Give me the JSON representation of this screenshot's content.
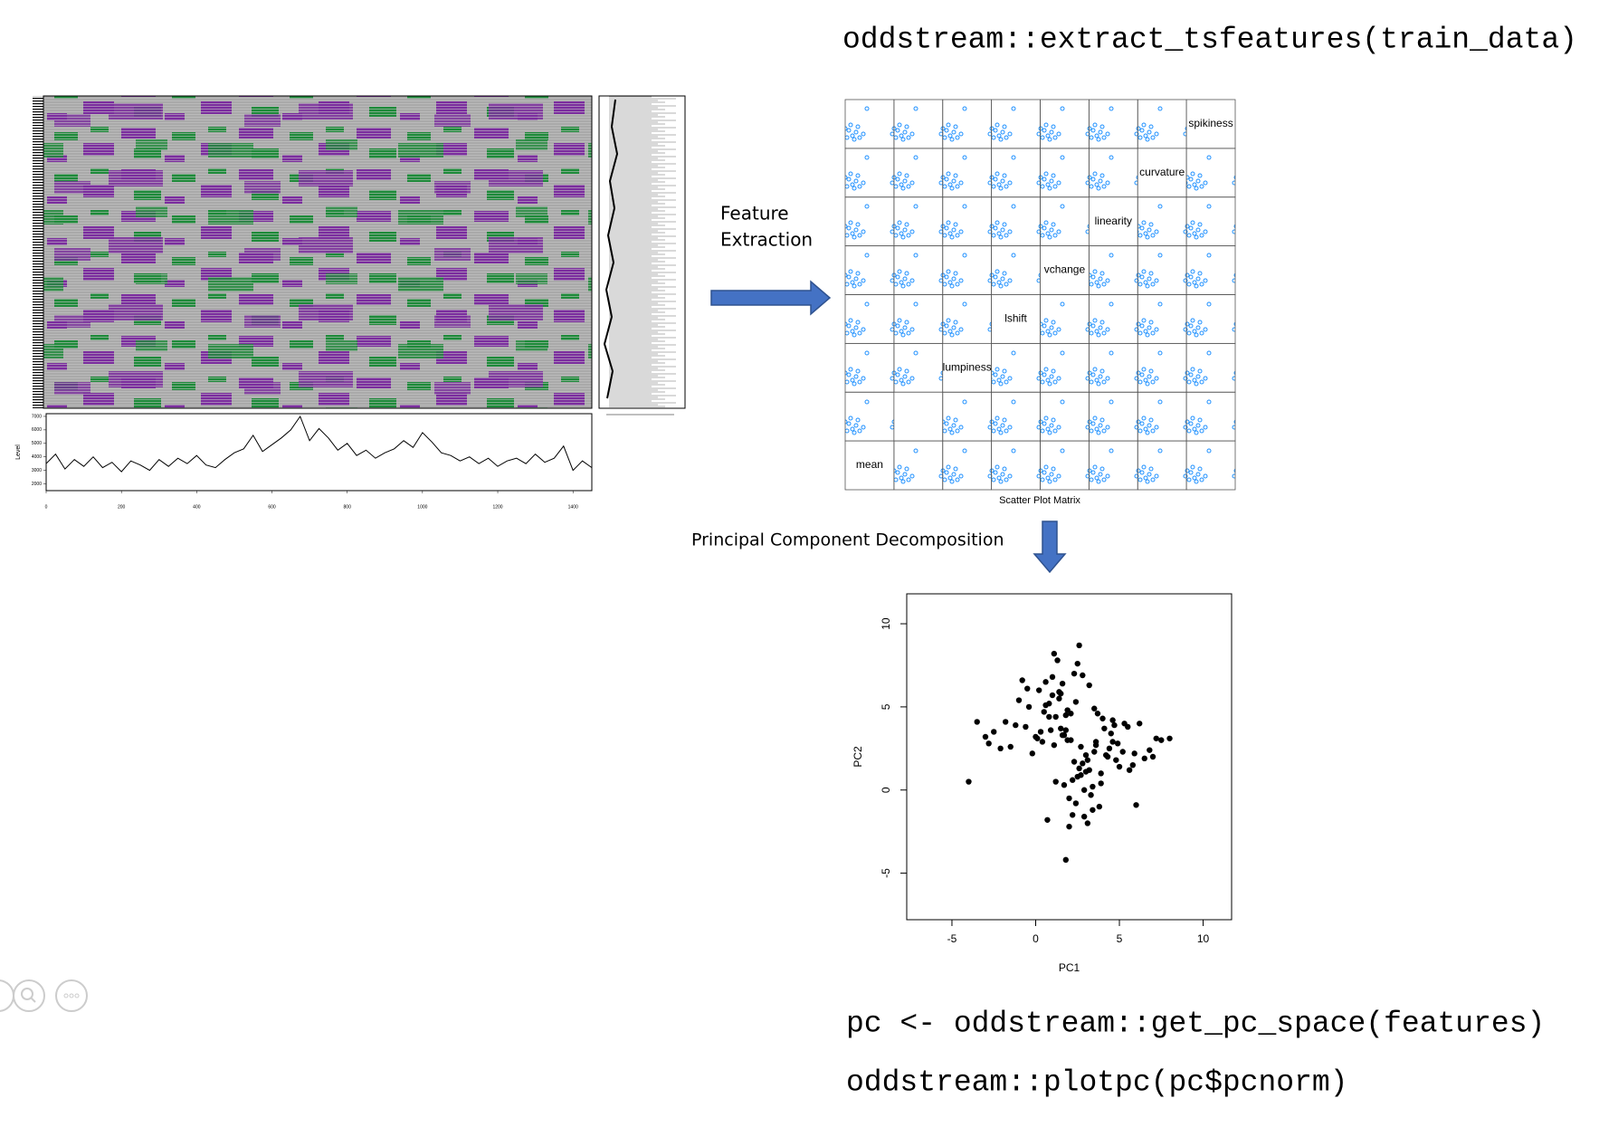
{
  "header": {
    "code": "oddstream::extract_tsfeatures(train_data)"
  },
  "steps": {
    "feature_extraction": [
      "Feature",
      "Extraction"
    ],
    "pca": "Principal Component Decomposition"
  },
  "scatter_matrix": {
    "title": "Scatter Plot Matrix",
    "variables": [
      "mean",
      null,
      "lumpiness",
      "lshift",
      "vchange",
      "linearity",
      "curvature",
      "spikiness"
    ]
  },
  "footer": {
    "code": [
      "pc <- oddstream::get_pc_space(features)",
      "oddstream::plotpc(pc$pcnorm)"
    ]
  },
  "chart_data": [
    {
      "type": "line",
      "y_label": "Level",
      "color": "#000000",
      "x": [
        0,
        25,
        50,
        75,
        100,
        125,
        150,
        175,
        200,
        225,
        250,
        275,
        300,
        325,
        350,
        375,
        400,
        425,
        450,
        475,
        500,
        525,
        550,
        575,
        600,
        625,
        650,
        675,
        700,
        725,
        750,
        775,
        800,
        825,
        850,
        875,
        900,
        925,
        950,
        975,
        1000,
        1025,
        1050,
        1075,
        1100,
        1125,
        1150,
        1175,
        1200,
        1225,
        1250,
        1275,
        1300,
        1325,
        1350,
        1375,
        1400,
        1425,
        1450
      ],
      "values": [
        3500,
        4200,
        3100,
        3800,
        3300,
        4000,
        3200,
        3600,
        2900,
        3700,
        3400,
        3000,
        3800,
        3300,
        3900,
        3500,
        4100,
        3400,
        3200,
        3800,
        4300,
        4600,
        5600,
        4400,
        4900,
        5400,
        6000,
        7000,
        5200,
        6100,
        5400,
        4500,
        5000,
        4100,
        4500,
        3900,
        4300,
        4600,
        5200,
        4700,
        5800,
        5100,
        4300,
        4100,
        3700,
        4000,
        3500,
        3900,
        3300,
        3700,
        3900,
        3500,
        4200,
        3600,
        3900,
        4800,
        3000,
        3700,
        3200
      ],
      "xlim": [
        0,
        1450
      ],
      "ylim": [
        1500,
        7200
      ],
      "xticks": [
        0,
        200,
        400,
        600,
        800,
        1000,
        1200,
        1400
      ],
      "yticks": [
        2000,
        3000,
        4000,
        5000,
        6000,
        7000
      ]
    },
    {
      "type": "scatter",
      "x_label": "PC1",
      "y_label": "PC2",
      "color": "#000000",
      "x": [
        2.1,
        1.5,
        3.2,
        0.8,
        2.7,
        4.1,
        1.2,
        -0.5,
        3.6,
        2.4,
        1.9,
        5.2,
        0.3,
        2.8,
        3.9,
        1.1,
        -1.2,
        4.6,
        2.2,
        0.6,
        3.1,
        1.7,
        6.2,
        -0.2,
        2.5,
        3.4,
        1.4,
        4.9,
        0.9,
        2.0,
        -2.1,
        3.7,
        5.8,
        1.6,
        2.9,
        0.1,
        4.3,
        2.6,
        -1.8,
        3.3,
        1.0,
        5.5,
        2.3,
        0.4,
        3.8,
        1.8,
        6.8,
        -0.8,
        2.7,
        4.5,
        1.3,
        3.0,
        -3.0,
        2.4,
        5.0,
        0.7,
        3.5,
        1.9,
        7.2,
        -1.5,
        2.2,
        4.0,
        0.2,
        3.1,
        1.5,
        5.9,
        -0.4,
        2.6,
        4.7,
        1.1,
        3.6,
        -2.5,
        2.0,
        6.5,
        0.5,
        3.2,
        1.7,
        4.4,
        -1.0,
        2.8,
        5.3,
        0.0,
        3.4,
        1.4,
        7.5,
        -3.5,
        2.5,
        4.2,
        1.0,
        1.8,
        -4.0,
        8.0,
        1.8,
        3.0,
        0.8,
        -2.8,
        6.0,
        2.3,
        4.8,
        1.2,
        3.5,
        -0.6,
        5.6,
        2.9,
        0.6,
        7.0,
        1.6,
        3.9,
        2.1,
        4.6
      ],
      "values": [
        3.0,
        5.8,
        1.2,
        4.4,
        2.6,
        3.7,
        0.5,
        6.1,
        2.9,
        -0.8,
        4.8,
        2.3,
        3.5,
        6.9,
        1.0,
        2.7,
        3.9,
        4.2,
        -1.5,
        5.1,
        1.8,
        3.3,
        4.0,
        2.2,
        7.6,
        0.2,
        5.5,
        2.8,
        3.6,
        -2.2,
        2.5,
        4.6,
        1.5,
        6.4,
        0.0,
        3.1,
        2.0,
        8.7,
        4.1,
        -0.3,
        5.7,
        3.8,
        1.7,
        2.9,
        -1.0,
        4.5,
        2.4,
        6.6,
        0.9,
        3.4,
        7.8,
        2.1,
        3.2,
        5.3,
        1.4,
        -1.8,
        4.9,
        3.0,
        3.1,
        2.6,
        0.6,
        4.3,
        6.0,
        -2.0,
        3.7,
        2.2,
        5.0,
        1.3,
        3.9,
        8.2,
        2.7,
        3.5,
        -0.5,
        1.9,
        4.7,
        6.3,
        0.3,
        2.5,
        5.4,
        1.6,
        4.0,
        3.2,
        -1.2,
        5.9,
        3.0,
        4.1,
        0.8,
        2.1,
        6.8,
        3.6,
        0.5,
        3.1,
        -4.2,
        1.1,
        5.2,
        2.8,
        -0.9,
        7.0,
        1.8,
        4.4,
        2.3,
        3.8,
        1.2,
        -1.6,
        6.5,
        2.0,
        3.3,
        0.4,
        4.6,
        2.9
      ],
      "xlim": [
        -7.7,
        11.7
      ],
      "ylim": [
        -7.8,
        11.8
      ],
      "xticks": [
        -5,
        0,
        5,
        10
      ],
      "yticks": [
        -5,
        0,
        5,
        10
      ]
    }
  ]
}
